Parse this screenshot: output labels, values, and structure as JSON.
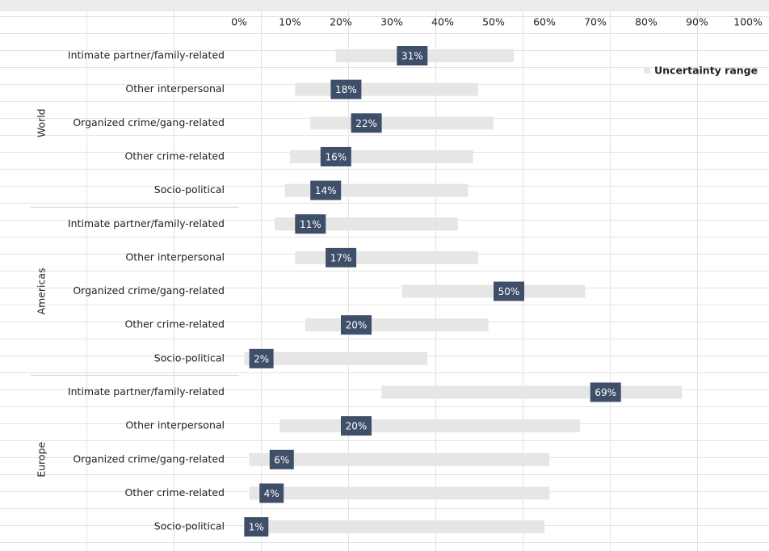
{
  "chart_data": {
    "type": "range_bar",
    "legend": "Uncertainty range",
    "range_color": "#e6e6e6",
    "label_color": "#3f4f69",
    "xlim": [
      0,
      100
    ],
    "xticks": [
      {
        "value": 0,
        "label": "0%"
      },
      {
        "value": 10,
        "label": "10%"
      },
      {
        "value": 20,
        "label": "20%"
      },
      {
        "value": 30,
        "label": "30%"
      },
      {
        "value": 40,
        "label": "40%"
      },
      {
        "value": 50,
        "label": "50%"
      },
      {
        "value": 60,
        "label": "60%"
      },
      {
        "value": 70,
        "label": "70%"
      },
      {
        "value": 80,
        "label": "80%"
      },
      {
        "value": 90,
        "label": "90%"
      },
      {
        "value": 100,
        "label": "100%"
      }
    ],
    "groups": [
      {
        "name": "World",
        "categories": [
          "Intimate partner/family-related",
          "Other interpersonal",
          "Organized crime/gang-related",
          "Other crime-related",
          "Socio-political"
        ],
        "low": [
          19,
          11,
          14,
          10,
          9
        ],
        "high": [
          54,
          47,
          50,
          46,
          45
        ],
        "values": [
          31,
          18,
          22,
          16,
          14
        ],
        "value_labels": [
          "31%",
          "18%",
          "22%",
          "16%",
          "14%"
        ]
      },
      {
        "name": "Americas",
        "categories": [
          "Intimate partner/family-related",
          "Other interpersonal",
          "Organized crime/gang-related",
          "Other crime-related",
          "Socio-political"
        ],
        "low": [
          7,
          11,
          32,
          13,
          1
        ],
        "high": [
          43,
          47,
          68,
          49,
          37
        ],
        "values": [
          11,
          17,
          50,
          20,
          2
        ],
        "value_labels": [
          "11%",
          "17%",
          "50%",
          "20%",
          "2%"
        ]
      },
      {
        "name": "Europe",
        "categories": [
          "Intimate partner/family-related",
          "Other interpersonal",
          "Organized crime/gang-related",
          "Other crime-related",
          "Socio-political"
        ],
        "low": [
          28,
          8,
          2,
          2,
          2
        ],
        "high": [
          87,
          67,
          61,
          61,
          60
        ],
        "values": [
          69,
          20,
          6,
          4,
          1
        ],
        "value_labels": [
          "69%",
          "20%",
          "6%",
          "4%",
          "1%"
        ]
      }
    ]
  }
}
